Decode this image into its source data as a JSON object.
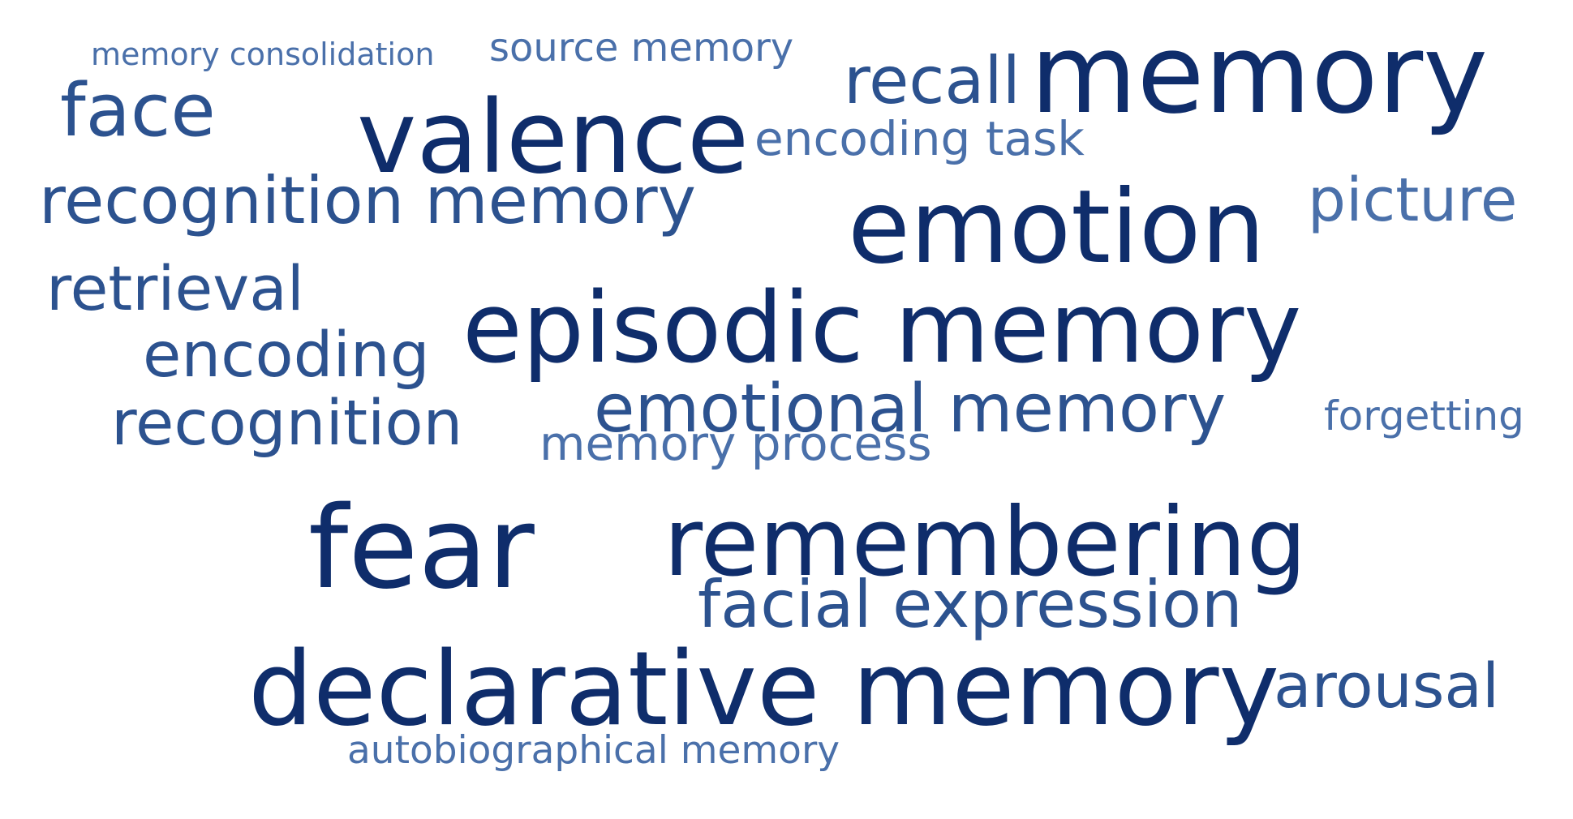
{
  "colors": {
    "background": "#ffffff",
    "dark": "#0f2d6b",
    "medium": "#2c528f",
    "light": "#4a70aa"
  },
  "words": [
    {
      "key": "memory_consolidation",
      "text": "memory consolidation",
      "tone": "light"
    },
    {
      "key": "source_memory",
      "text": "source memory",
      "tone": "light"
    },
    {
      "key": "recall",
      "text": "recall",
      "tone": "medium"
    },
    {
      "key": "memory",
      "text": "memory",
      "tone": "dark"
    },
    {
      "key": "face",
      "text": "face",
      "tone": "medium"
    },
    {
      "key": "valence",
      "text": "valence",
      "tone": "dark"
    },
    {
      "key": "encoding_task",
      "text": "encoding task",
      "tone": "light"
    },
    {
      "key": "recognition_memory",
      "text": "recognition memory",
      "tone": "medium"
    },
    {
      "key": "emotion",
      "text": "emotion",
      "tone": "dark"
    },
    {
      "key": "picture",
      "text": "picture",
      "tone": "light"
    },
    {
      "key": "retrieval",
      "text": "retrieval",
      "tone": "medium"
    },
    {
      "key": "episodic_memory",
      "text": "episodic memory",
      "tone": "dark"
    },
    {
      "key": "encoding",
      "text": "encoding",
      "tone": "medium"
    },
    {
      "key": "recognition",
      "text": "recognition",
      "tone": "medium"
    },
    {
      "key": "emotional_memory",
      "text": "emotional memory",
      "tone": "medium"
    },
    {
      "key": "forgetting",
      "text": "forgetting",
      "tone": "light"
    },
    {
      "key": "memory_process",
      "text": "memory process",
      "tone": "light"
    },
    {
      "key": "fear",
      "text": "fear",
      "tone": "dark"
    },
    {
      "key": "remembering",
      "text": "remembering",
      "tone": "dark"
    },
    {
      "key": "facial_expression",
      "text": "facial expression",
      "tone": "medium"
    },
    {
      "key": "declarative_memory",
      "text": "declarative memory",
      "tone": "dark"
    },
    {
      "key": "arousal",
      "text": "arousal",
      "tone": "medium"
    },
    {
      "key": "autobiographical_memory",
      "text": "autobiographical memory",
      "tone": "light"
    }
  ]
}
